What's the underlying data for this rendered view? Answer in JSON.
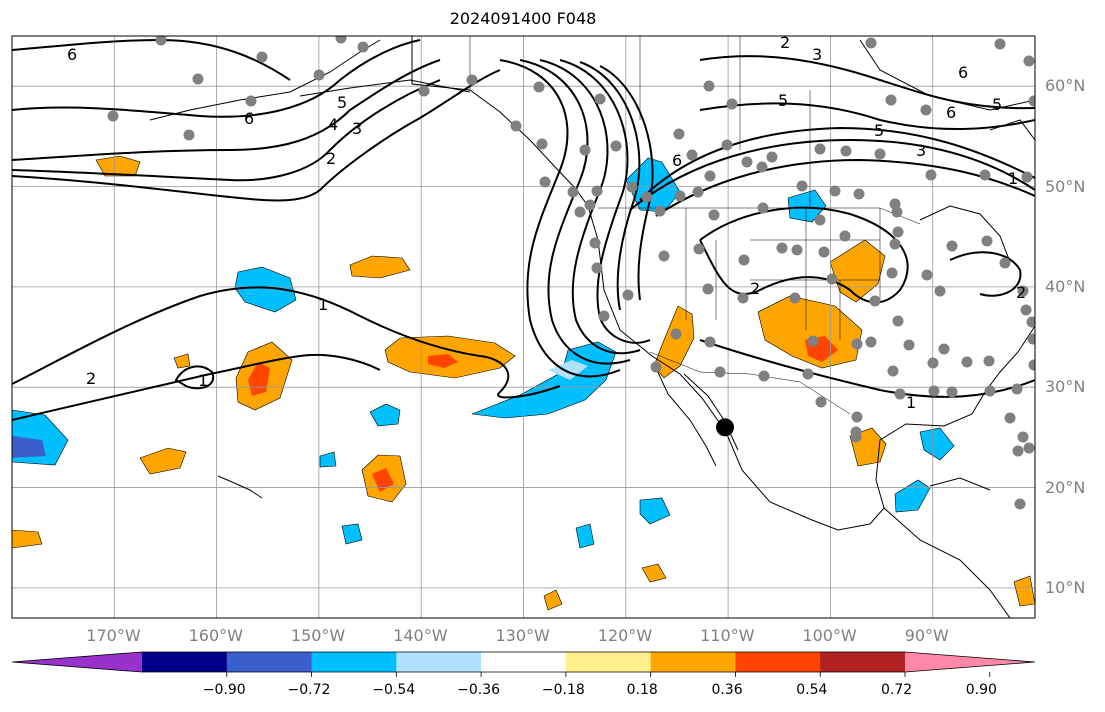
{
  "title": "2024091400 F048",
  "map": {
    "projection": "PlateCarree",
    "lon_range": [
      -180,
      -80
    ],
    "lat_range": [
      7,
      65
    ],
    "gridlines": true,
    "lat_ticks": [
      {
        "value": 10,
        "label": "10°N"
      },
      {
        "value": 20,
        "label": "20°N"
      },
      {
        "value": 30,
        "label": "30°N"
      },
      {
        "value": 40,
        "label": "40°N"
      },
      {
        "value": 50,
        "label": "50°N"
      },
      {
        "value": 60,
        "label": "60°N"
      }
    ],
    "lon_ticks": [
      {
        "value": -170,
        "label": "170°W"
      },
      {
        "value": -160,
        "label": "160°W"
      },
      {
        "value": -150,
        "label": "150°W"
      },
      {
        "value": -140,
        "label": "140°W"
      },
      {
        "value": -130,
        "label": "130°W"
      },
      {
        "value": -120,
        "label": "120°W"
      },
      {
        "value": -110,
        "label": "110°W"
      },
      {
        "value": -100,
        "label": "100°W"
      },
      {
        "value": -90,
        "label": "90°W"
      }
    ],
    "contour_labels": [
      "1",
      "2",
      "3",
      "4",
      "5",
      "6"
    ],
    "marker": {
      "lon": -110.3,
      "lat": 26.0,
      "color": "#000000"
    },
    "station_color": "#808080"
  },
  "colorbar": {
    "extend": "both",
    "colors": [
      "#9932cc",
      "#00008b",
      "#3a5fcd",
      "#00bfff",
      "#b0e2ff",
      "#ffffff",
      "#fff08c",
      "#ffa500",
      "#ff4500",
      "#b22222",
      "#ff88aa"
    ],
    "tick_labels": [
      "−0.90",
      "−0.72",
      "−0.54",
      "−0.36",
      "−0.18",
      "0.18",
      "0.36",
      "0.54",
      "0.72",
      "0.90"
    ]
  }
}
